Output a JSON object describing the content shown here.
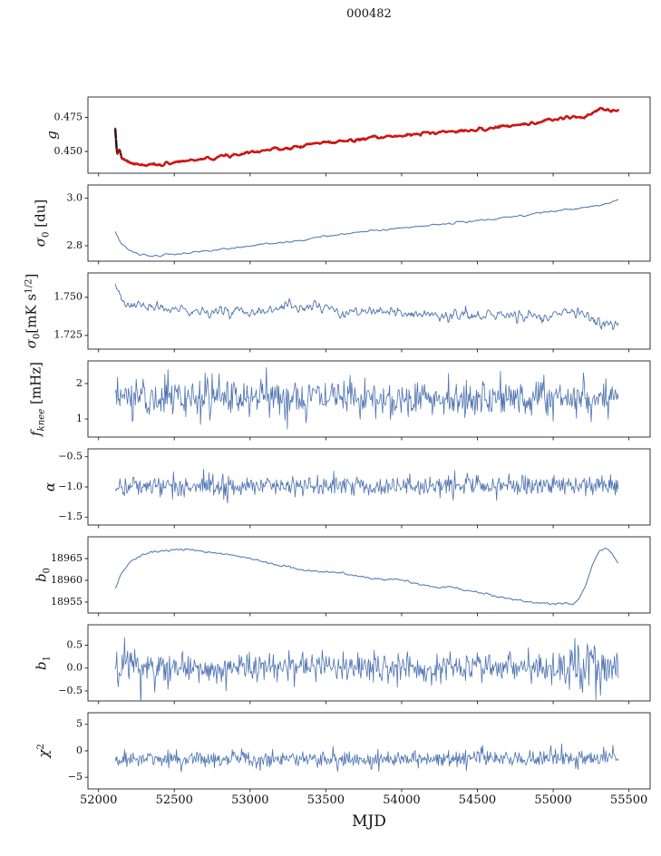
{
  "title": "000482",
  "xlabel": "MJD",
  "colors": {
    "blue": "#4c72b0",
    "red": "#dd1111",
    "black": "#111111",
    "spine": "#222222",
    "text": "#111111"
  },
  "x_axis": {
    "xlim": [
      51930,
      55640
    ],
    "xticks": [
      52000,
      52500,
      53000,
      53500,
      54000,
      54500,
      55000,
      55500
    ],
    "xtick_labels": [
      "52000",
      "52500",
      "53000",
      "53500",
      "54000",
      "54500",
      "55000",
      "55500"
    ]
  },
  "chart_data": [
    {
      "name": "g",
      "type": "line",
      "ylabel": "g",
      "ylabel_segments": [
        {
          "t": "g",
          "i": true
        }
      ],
      "ylim": [
        0.434,
        0.49
      ],
      "yticks": [
        0.45,
        0.475
      ],
      "ytick_labels": [
        "0.450",
        "0.475"
      ],
      "series": [
        {
          "color": "#111111",
          "marker_color": "#dd1111",
          "line_width": 2.4,
          "x_start": 52110,
          "x_end": 55430,
          "n": 680,
          "noise": 0.0007,
          "noise_smooth": 4,
          "seed": 7,
          "trend": [
            [
              52110,
              0.466
            ],
            [
              52122,
              0.4475
            ],
            [
              52138,
              0.4525
            ],
            [
              52155,
              0.444
            ],
            [
              52200,
              0.4418
            ],
            [
              52260,
              0.4402
            ],
            [
              52330,
              0.4396
            ],
            [
              52400,
              0.4402
            ],
            [
              52470,
              0.4415
            ],
            [
              52550,
              0.4428
            ],
            [
              52650,
              0.4442
            ],
            [
              52750,
              0.4455
            ],
            [
              52850,
              0.4468
            ],
            [
              52950,
              0.4488
            ],
            [
              53050,
              0.4508
            ],
            [
              53150,
              0.4515
            ],
            [
              53250,
              0.4528
            ],
            [
              53350,
              0.4545
            ],
            [
              53450,
              0.4562
            ],
            [
              53550,
              0.457
            ],
            [
              53650,
              0.4578
            ],
            [
              53750,
              0.459
            ],
            [
              53850,
              0.4602
            ],
            [
              53950,
              0.461
            ],
            [
              54050,
              0.4622
            ],
            [
              54150,
              0.4632
            ],
            [
              54250,
              0.4642
            ],
            [
              54350,
              0.4652
            ],
            [
              54450,
              0.4658
            ],
            [
              54550,
              0.4665
            ],
            [
              54650,
              0.4678
            ],
            [
              54750,
              0.4692
            ],
            [
              54850,
              0.4705
            ],
            [
              54950,
              0.4725
            ],
            [
              55050,
              0.4745
            ],
            [
              55120,
              0.4752
            ],
            [
              55180,
              0.4746
            ],
            [
              55240,
              0.4768
            ],
            [
              55290,
              0.4802
            ],
            [
              55340,
              0.4812
            ],
            [
              55390,
              0.48
            ],
            [
              55430,
              0.4804
            ]
          ]
        }
      ]
    },
    {
      "name": "sigma0_du",
      "type": "line",
      "ylabel": "σ0 [du]",
      "ylabel_segments": [
        {
          "t": "σ",
          "i": true
        },
        {
          "t": "0",
          "sub": true
        },
        {
          "t": " [du]"
        }
      ],
      "ylim": [
        2.735,
        3.055
      ],
      "yticks": [
        2.8,
        3.0
      ],
      "ytick_labels": [
        "2.8",
        "3.0"
      ],
      "series": [
        {
          "color": "#4c72b0",
          "line_width": 1.0,
          "x_start": 52110,
          "x_end": 55430,
          "n": 660,
          "noise": 0.0022,
          "noise_smooth": 4,
          "seed": 12,
          "trend": [
            [
              52110,
              2.853
            ],
            [
              52150,
              2.808
            ],
            [
              52210,
              2.778
            ],
            [
              52280,
              2.762
            ],
            [
              52350,
              2.757
            ],
            [
              52430,
              2.76
            ],
            [
              52520,
              2.766
            ],
            [
              52620,
              2.772
            ],
            [
              52720,
              2.779
            ],
            [
              52820,
              2.785
            ],
            [
              52920,
              2.792
            ],
            [
              53020,
              2.801
            ],
            [
              53120,
              2.808
            ],
            [
              53220,
              2.814
            ],
            [
              53320,
              2.822
            ],
            [
              53420,
              2.832
            ],
            [
              53520,
              2.843
            ],
            [
              53620,
              2.849
            ],
            [
              53720,
              2.857
            ],
            [
              53820,
              2.863
            ],
            [
              53920,
              2.869
            ],
            [
              54020,
              2.874
            ],
            [
              54120,
              2.881
            ],
            [
              54220,
              2.887
            ],
            [
              54320,
              2.895
            ],
            [
              54420,
              2.901
            ],
            [
              54520,
              2.907
            ],
            [
              54620,
              2.913
            ],
            [
              54720,
              2.921
            ],
            [
              54820,
              2.929
            ],
            [
              54920,
              2.939
            ],
            [
              55020,
              2.947
            ],
            [
              55120,
              2.953
            ],
            [
              55220,
              2.96
            ],
            [
              55320,
              2.97
            ],
            [
              55400,
              2.984
            ],
            [
              55430,
              2.993
            ]
          ]
        }
      ]
    },
    {
      "name": "sigma0_mK",
      "type": "line",
      "ylabel": "σ0[mK s^1/2]",
      "ylabel_segments": [
        {
          "t": "σ",
          "i": true
        },
        {
          "t": "0",
          "sub": true
        },
        {
          "t": "[mK s"
        },
        {
          "t": "1/2",
          "sup": true
        },
        {
          "t": "]"
        }
      ],
      "ylim": [
        1.716,
        1.766
      ],
      "yticks": [
        1.725,
        1.75
      ],
      "ytick_labels": [
        "1.725",
        "1.750"
      ],
      "series": [
        {
          "color": "#4c72b0",
          "line_width": 0.9,
          "x_start": 52110,
          "x_end": 55430,
          "n": 660,
          "noise": 0.0022,
          "noise_smooth": 2,
          "seed": 23,
          "trend": [
            [
              52110,
              1.7562
            ],
            [
              52140,
              1.75
            ],
            [
              52180,
              1.7455
            ],
            [
              52240,
              1.7442
            ],
            [
              52340,
              1.7438
            ],
            [
              52440,
              1.7422
            ],
            [
              52600,
              1.7406
            ],
            [
              52800,
              1.7409
            ],
            [
              53000,
              1.7416
            ],
            [
              53200,
              1.7421
            ],
            [
              53340,
              1.7432
            ],
            [
              53400,
              1.7452
            ],
            [
              53460,
              1.7422
            ],
            [
              53620,
              1.7401
            ],
            [
              53820,
              1.7396
            ],
            [
              54020,
              1.7391
            ],
            [
              54220,
              1.7386
            ],
            [
              54420,
              1.7381
            ],
            [
              54620,
              1.7379
            ],
            [
              54820,
              1.7376
            ],
            [
              55020,
              1.7379
            ],
            [
              55120,
              1.7401
            ],
            [
              55220,
              1.7381
            ],
            [
              55290,
              1.7346
            ],
            [
              55350,
              1.733
            ],
            [
              55395,
              1.7272
            ],
            [
              55430,
              1.7316
            ]
          ]
        }
      ]
    },
    {
      "name": "f_knee",
      "type": "line",
      "ylabel": "f_knee [mHz]",
      "ylabel_segments": [
        {
          "t": "f",
          "i": true
        },
        {
          "t": "knee",
          "sub": true,
          "i": true
        },
        {
          "t": " [mHz]"
        }
      ],
      "ylim": [
        0.49,
        2.64
      ],
      "yticks": [
        1,
        2
      ],
      "ytick_labels": [
        "1",
        "2"
      ],
      "series": [
        {
          "color": "#4c72b0",
          "line_width": 0.8,
          "x_start": 52110,
          "x_end": 55430,
          "n": 650,
          "noise": 0.27,
          "noise_smooth": 0,
          "seed": 31,
          "trend": [
            [
              52110,
              1.62
            ],
            [
              53800,
              1.6
            ],
            [
              55430,
              1.58
            ]
          ]
        }
      ]
    },
    {
      "name": "alpha",
      "type": "line",
      "ylabel": "α",
      "ylabel_segments": [
        {
          "t": "α",
          "i": true
        }
      ],
      "ylim": [
        -1.63,
        -0.37
      ],
      "yticks": [
        -1.5,
        -1.0,
        -0.5
      ],
      "ytick_labels": [
        "−1.5",
        "−1.0",
        "−0.5"
      ],
      "series": [
        {
          "color": "#4c72b0",
          "line_width": 0.8,
          "x_start": 52110,
          "x_end": 55430,
          "n": 650,
          "noise": 0.085,
          "noise_smooth": 0,
          "seed": 41,
          "trend": [
            [
              52110,
              -0.985
            ],
            [
              55430,
              -0.975
            ]
          ]
        }
      ]
    },
    {
      "name": "b0",
      "type": "line",
      "ylabel": "b0",
      "ylabel_segments": [
        {
          "t": "b",
          "i": true
        },
        {
          "t": "0",
          "sub": true
        }
      ],
      "ylim": [
        18952.5,
        18970.0
      ],
      "yticks": [
        18955,
        18960,
        18965
      ],
      "ytick_labels": [
        "18955",
        "18960",
        "18965"
      ],
      "series": [
        {
          "color": "#4c72b0",
          "line_width": 1.0,
          "x_start": 52110,
          "x_end": 55430,
          "n": 660,
          "noise": 0.1,
          "noise_smooth": 3,
          "seed": 53,
          "trend": [
            [
              52110,
              18957.9
            ],
            [
              52150,
              18961.6
            ],
            [
              52210,
              18964.2
            ],
            [
              52290,
              18965.9
            ],
            [
              52370,
              18966.6
            ],
            [
              52460,
              18966.9
            ],
            [
              52560,
              18967.1
            ],
            [
              52660,
              18966.8
            ],
            [
              52760,
              18966.3
            ],
            [
              52860,
              18965.9
            ],
            [
              52960,
              18965.3
            ],
            [
              53060,
              18964.6
            ],
            [
              53160,
              18963.7
            ],
            [
              53260,
              18963.1
            ],
            [
              53360,
              18962.3
            ],
            [
              53440,
              18962.1
            ],
            [
              53520,
              18961.9
            ],
            [
              53620,
              18961.6
            ],
            [
              53720,
              18960.9
            ],
            [
              53820,
              18960.4
            ],
            [
              53920,
              18960.1
            ],
            [
              53980,
              18960.2
            ],
            [
              54070,
              18959.4
            ],
            [
              54170,
              18958.7
            ],
            [
              54260,
              18958.4
            ],
            [
              54320,
              18958.5
            ],
            [
              54420,
              18957.7
            ],
            [
              54520,
              18957.1
            ],
            [
              54620,
              18956.4
            ],
            [
              54720,
              18955.7
            ],
            [
              54820,
              18955.1
            ],
            [
              54920,
              18954.8
            ],
            [
              55020,
              18954.6
            ],
            [
              55090,
              18954.8
            ],
            [
              55130,
              18954.5
            ],
            [
              55170,
              18955.6
            ],
            [
              55210,
              18958.6
            ],
            [
              55260,
              18963.6
            ],
            [
              55305,
              18966.9
            ],
            [
              55345,
              18967.4
            ],
            [
              55390,
              18966.1
            ],
            [
              55430,
              18963.9
            ]
          ]
        }
      ]
    },
    {
      "name": "b1",
      "type": "line",
      "ylabel": "b1",
      "ylabel_segments": [
        {
          "t": "b",
          "i": true
        },
        {
          "t": "1",
          "sub": true
        }
      ],
      "ylim": [
        -0.72,
        0.95
      ],
      "yticks": [
        -0.5,
        0.0,
        0.5
      ],
      "ytick_labels": [
        "−0.5",
        "0.0",
        "0.5"
      ],
      "series": [
        {
          "color": "#4c72b0",
          "line_width": 0.8,
          "x_start": 52110,
          "x_end": 55430,
          "n": 650,
          "noise": 0.16,
          "noise_smooth": 0,
          "seed": 61,
          "noise_env": [
            [
              52110,
              2.3
            ],
            [
              52300,
              1.5
            ],
            [
              52500,
              1.0
            ],
            [
              54800,
              1.0
            ],
            [
              55000,
              1.3
            ],
            [
              55080,
              1.9
            ],
            [
              55260,
              1.9
            ],
            [
              55360,
              1.2
            ],
            [
              55430,
              1.5
            ]
          ],
          "trend": [
            [
              52110,
              0.08
            ],
            [
              52350,
              0.0
            ],
            [
              55430,
              0.0
            ]
          ]
        }
      ]
    },
    {
      "name": "chi2",
      "type": "line",
      "ylabel": "χ^2",
      "ylabel_segments": [
        {
          "t": "χ",
          "i": true
        },
        {
          "t": "2",
          "sup": true
        }
      ],
      "ylim": [
        -7.2,
        7.2
      ],
      "yticks": [
        -5,
        0,
        5
      ],
      "ytick_labels": [
        "−5",
        "0",
        "5"
      ],
      "series": [
        {
          "color": "#4c72b0",
          "line_width": 0.8,
          "x_start": 52110,
          "x_end": 55430,
          "n": 650,
          "noise": 0.8,
          "noise_smooth": 0,
          "seed": 71,
          "trend": [
            [
              52110,
              -1.6
            ],
            [
              55430,
              -1.4
            ]
          ]
        }
      ]
    }
  ]
}
